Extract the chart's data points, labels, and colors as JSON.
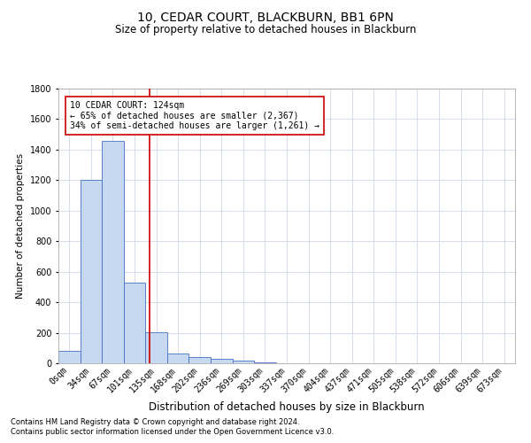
{
  "title1": "10, CEDAR COURT, BLACKBURN, BB1 6PN",
  "title2": "Size of property relative to detached houses in Blackburn",
  "xlabel": "Distribution of detached houses by size in Blackburn",
  "ylabel": "Number of detached properties",
  "bar_labels": [
    "0sqm",
    "34sqm",
    "67sqm",
    "101sqm",
    "135sqm",
    "168sqm",
    "202sqm",
    "236sqm",
    "269sqm",
    "303sqm",
    "337sqm",
    "370sqm",
    "404sqm",
    "437sqm",
    "471sqm",
    "505sqm",
    "538sqm",
    "572sqm",
    "606sqm",
    "639sqm",
    "673sqm"
  ],
  "bar_values": [
    80,
    1200,
    1460,
    530,
    205,
    65,
    38,
    28,
    18,
    8,
    0,
    0,
    0,
    0,
    0,
    0,
    0,
    0,
    0,
    0,
    0
  ],
  "bar_color": "#c6d9f0",
  "bar_edge_color": "#4472c4",
  "annotation_text_line1": "10 CEDAR COURT: 124sqm",
  "annotation_text_line2": "← 65% of detached houses are smaller (2,367)",
  "annotation_text_line3": "34% of semi-detached houses are larger (1,261) →",
  "annotation_box_color": "#ffffff",
  "annotation_box_edge_color": "#cc0000",
  "vline_color": "#cc0000",
  "vline_x": 3.676,
  "ylim": [
    0,
    1800
  ],
  "yticks": [
    0,
    200,
    400,
    600,
    800,
    1000,
    1200,
    1400,
    1600,
    1800
  ],
  "footer1": "Contains HM Land Registry data © Crown copyright and database right 2024.",
  "footer2": "Contains public sector information licensed under the Open Government Licence v3.0.",
  "background_color": "#ffffff",
  "grid_color": "#d0d8e8",
  "title1_fontsize": 10,
  "title2_fontsize": 8.5,
  "xlabel_fontsize": 8.5,
  "ylabel_fontsize": 7.5,
  "tick_fontsize": 7,
  "annotation_fontsize": 7,
  "footer_fontsize": 6
}
